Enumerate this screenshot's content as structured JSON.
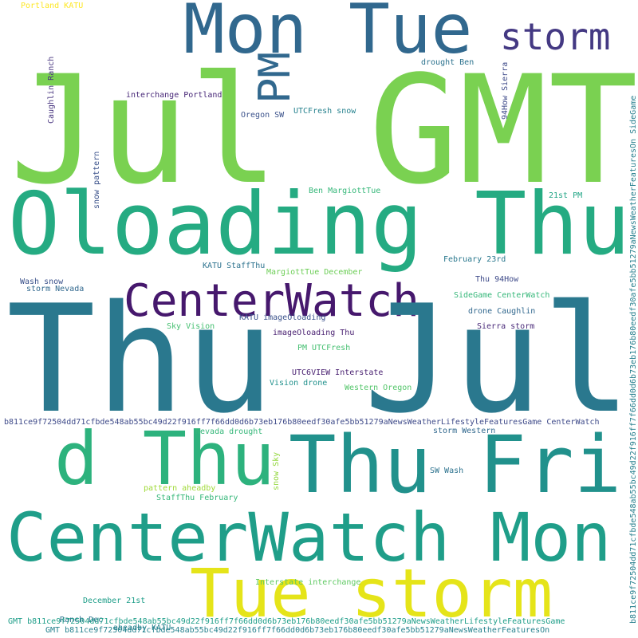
{
  "words": [
    "Jul GMT",
    "Mon Tue",
    "storm",
    "PM",
    "Oloading Thu",
    "CenterWatch",
    "Thu Jul",
    "d Thu",
    "Thu Fri",
    "CenterWatch Mon",
    "Tue storm",
    "Portland KATU",
    "Caughlin Ranch",
    "interchange Portland",
    "drought Ben",
    "94How Sierra",
    "Oregon SW",
    "UTCFresh snow",
    "snow pattern",
    "Ben MargiottTue",
    "21st PM",
    "KATU StaffThu",
    "MargiottTue December",
    "February 23rd",
    "Wash snow",
    "storm Nevada",
    "Thu 94How",
    "SideGame CenterWatch",
    "drone Caughlin",
    "Sky Vision",
    "KATU imageOloading",
    "Sierra storm",
    "imageOloading Thu",
    "PM UTCFresh",
    "UTC6VIEW Interstate",
    "Vision drone",
    "Western Oregon",
    "b811ce9f72504dd71cfbde548ab55bc49d22f916ff7f66dd0d6b73eb176b80eedf30afe5bb51279aNewsWeatherLifestyleFeaturesGame CenterWatch",
    "b811ce9f72504dd71cfbde548ab55bc49d22f916ff7f66dd0d6b73eb176b80eedf30afe5bb51279aNewsWeatherFeaturesOn SideGame",
    "Nevada drought",
    "storm Western",
    "snow Sky",
    "SW Wash",
    "pattern aheadby",
    "StaffThu February",
    "Interstate interchange",
    "December 21st",
    "Ranch Dec",
    "aheadby KATU",
    "GMT b811ce9f72504dd71cfbde548ab55bc49d22f916ff7f66dd0d6b73eb176b80eedf30afe5bb51279aNewsWeatherLifestyleFeaturesGame",
    "GMT b811ce9f72504dd71cfbde548ab55bc49d22f916ff7f66dd0d6b73eb176b80eedf30afe5bb51279aNewsWeatherFeaturesOn"
  ]
}
